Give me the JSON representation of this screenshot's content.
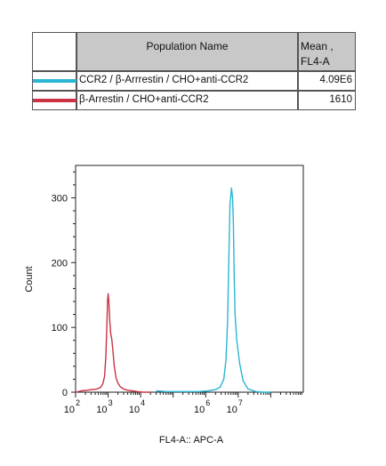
{
  "legend_table": {
    "header_population": "Population Name",
    "header_mean_line1": "Mean ,",
    "header_mean_line2": "FL4-A",
    "rows": [
      {
        "name": "CCR2 / β-Arrrestin / CHO+anti-CCR2",
        "mean": "4.09E6",
        "color": "#29b6d4"
      },
      {
        "name": "β-Arrestin / CHO+anti-CCR2",
        "mean": "1610",
        "color": "#cc3344"
      }
    ]
  },
  "chart_data": {
    "type": "line",
    "xlabel": "FL4-A:: APC-A",
    "ylabel": "Count",
    "x_scale": "log",
    "xlim": [
      100,
      1000000000
    ],
    "ylim": [
      0,
      350
    ],
    "y_ticks": [
      0,
      100,
      200,
      300
    ],
    "x_ticks": [
      {
        "value": 100,
        "label": "10",
        "exp": "2"
      },
      {
        "value": 1000,
        "label": "10",
        "exp": "3"
      },
      {
        "value": 10000,
        "label": "10",
        "exp": "4"
      },
      {
        "value": 1000000,
        "label": "10",
        "exp": "6"
      },
      {
        "value": 10000000,
        "label": "10",
        "exp": "7"
      }
    ],
    "series": [
      {
        "name": "β-Arrestin / CHO+anti-CCR2",
        "color": "#cc3344",
        "x": [
          100,
          150,
          220,
          320,
          460,
          600,
          700,
          780,
          850,
          920,
          960,
          1000,
          1050,
          1120,
          1200,
          1300,
          1400,
          1550,
          1750,
          2000,
          2400,
          3000,
          4000,
          5500,
          8000,
          12000,
          20000
        ],
        "y": [
          0,
          2,
          3,
          4,
          5,
          8,
          14,
          25,
          55,
          105,
          140,
          152,
          142,
          110,
          90,
          82,
          65,
          40,
          22,
          14,
          8,
          5,
          3,
          2,
          1,
          0,
          0
        ]
      },
      {
        "name": "CCR2 / β-Arrrestin / CHO+anti-CCR2",
        "color": "#29b6d4",
        "x": [
          30000,
          60000,
          120000,
          250000,
          600000,
          1200000,
          2000000,
          2800000,
          3600000,
          4200000,
          4700000,
          5100000,
          5600000,
          6200000,
          6700000,
          7100000,
          7500000,
          8000000,
          9000000,
          11000000,
          14000000,
          20000000,
          35000000,
          60000000,
          100000000
        ],
        "y": [
          2,
          1,
          1,
          1,
          1,
          2,
          4,
          8,
          20,
          50,
          110,
          200,
          290,
          315,
          300,
          260,
          180,
          120,
          80,
          45,
          18,
          5,
          1,
          0,
          0
        ]
      }
    ]
  }
}
